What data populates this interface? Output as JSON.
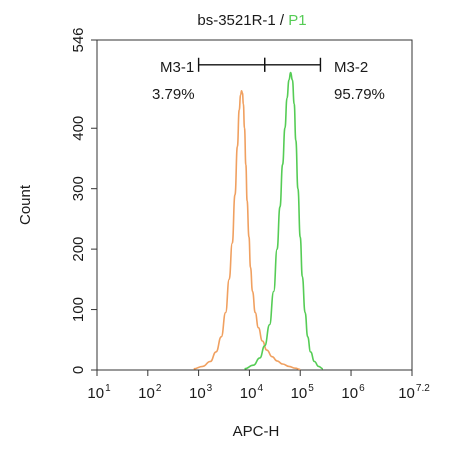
{
  "chart_data": {
    "type": "line",
    "title": {
      "sample": "bs-3521R-1",
      "separator": "/",
      "population": "P1",
      "population_color": "#55cc55"
    },
    "xlabel": "APC-H",
    "ylabel": "Count",
    "x_scale": "log",
    "xlim": [
      10,
      15848932
    ],
    "ylim": [
      0,
      546
    ],
    "x_ticks": [
      {
        "base": "10",
        "exp": "1",
        "value": 10
      },
      {
        "base": "10",
        "exp": "2",
        "value": 100
      },
      {
        "base": "10",
        "exp": "3",
        "value": 1000
      },
      {
        "base": "10",
        "exp": "4",
        "value": 10000
      },
      {
        "base": "10",
        "exp": "5",
        "value": 100000
      },
      {
        "base": "10",
        "exp": "6",
        "value": 1000000
      },
      {
        "base": "10",
        "exp": "7.2",
        "value": 15848932
      }
    ],
    "y_ticks": [
      "0",
      "100",
      "200",
      "300",
      "400",
      "546"
    ],
    "grid": false,
    "series": [
      {
        "color": "#f0a060",
        "x": [
          800,
          1200,
          1700,
          2200,
          2800,
          3400,
          4000,
          4600,
          5200,
          5800,
          6300,
          6700,
          7000,
          7300,
          7600,
          8000,
          8500,
          9000,
          9800,
          10500,
          11500,
          13000,
          15000,
          18000,
          22000,
          28000,
          35000,
          45000,
          60000,
          80000,
          100000
        ],
        "y": [
          2,
          6,
          14,
          30,
          55,
          95,
          150,
          210,
          290,
          370,
          430,
          455,
          462,
          458,
          440,
          400,
          340,
          280,
          220,
          170,
          130,
          95,
          70,
          48,
          33,
          22,
          15,
          10,
          6,
          3,
          1
        ]
      },
      {
        "color": "#55cc55",
        "x": [
          8000,
          12000,
          16000,
          20000,
          25000,
          30000,
          35000,
          40000,
          45000,
          50000,
          55000,
          60000,
          65000,
          70000,
          76000,
          82000,
          90000,
          100000,
          110000,
          125000,
          140000,
          160000,
          190000,
          230000,
          280000
        ],
        "y": [
          2,
          8,
          20,
          40,
          75,
          130,
          200,
          270,
          340,
          400,
          450,
          480,
          492,
          480,
          440,
          380,
          300,
          220,
          155,
          95,
          55,
          30,
          14,
          6,
          2
        ]
      }
    ],
    "gates": [
      {
        "name": "M3-1",
        "percent": "3.79%",
        "x_range": [
          1000,
          20000
        ],
        "y": 505
      },
      {
        "name": "M3-2",
        "percent": "95.79%",
        "x_range": [
          20000,
          250000
        ],
        "y": 505
      }
    ]
  }
}
